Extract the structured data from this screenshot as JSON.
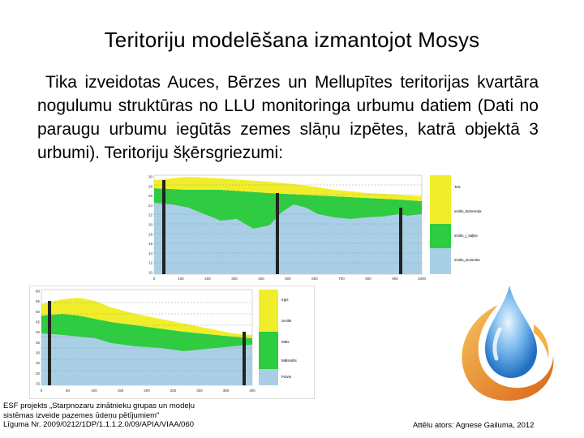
{
  "title": "Teritoriju modelēšana izmantojot Mosys",
  "body_paragraph": "Tika izveidotas Auces, Bērzes un Mellupītes teritorijas kvartāra nogulumu struktūras no LLU monitoringa urbumu datiem (Dati no paraugu urbumu iegūtās zemes slāņu izpētes, katrā objektā 3 urbumi). Teritoriju šķērsgriezumi:",
  "figure1": {
    "y_ticks": [
      "30",
      "28",
      "26",
      "24",
      "22",
      "20",
      "18",
      "16",
      "14",
      "12",
      "10"
    ],
    "x_ticks": [
      "0",
      "100",
      "200",
      "300",
      "400",
      "500",
      "600",
      "700",
      "800",
      "900",
      "1000"
    ],
    "legend": [
      "Teic",
      "smilts_Bohrenda",
      "smilts_ļ_kaļķis",
      "smilts_Dolomīts"
    ],
    "colors": {
      "top": "#f0ee2a",
      "mid": "#2ecc40",
      "bottom": "#a9cfe6",
      "line": "#444444"
    }
  },
  "figure2": {
    "y_ticks": [
      "60",
      "55",
      "50",
      "45",
      "40",
      "35",
      "30",
      "25",
      "20",
      "15"
    ],
    "x_ticks": [
      "0",
      "50",
      "100",
      "150",
      "200",
      "250",
      "300",
      "350",
      "400"
    ],
    "legend": [
      "Irgis",
      "Smilts",
      "Māls",
      "Mālsmilts",
      "Pulvis"
    ],
    "colors": {
      "top": "#f0ee2a",
      "mid": "#2ecc40",
      "bottom": "#a9cfe6",
      "line": "#444444"
    }
  },
  "footer": {
    "project_line1": "ESF projekts „Starpnozaru zinātnieku grupas un modeļu",
    "project_line2": "sistēmas izveide pazemes ūdeņu pētījumiem”",
    "project_line3": "Līguma Nr. 2009/0212/1DP/1.1.1.2.0/09/APIA/VIAA/060",
    "author": "Attēlu ators: Agnese Gailuma, 2012"
  },
  "logo": {
    "icon": "water-drop-swirl-logo",
    "colors": [
      "#e87a1e",
      "#3a8fd6",
      "#f5b041"
    ]
  }
}
